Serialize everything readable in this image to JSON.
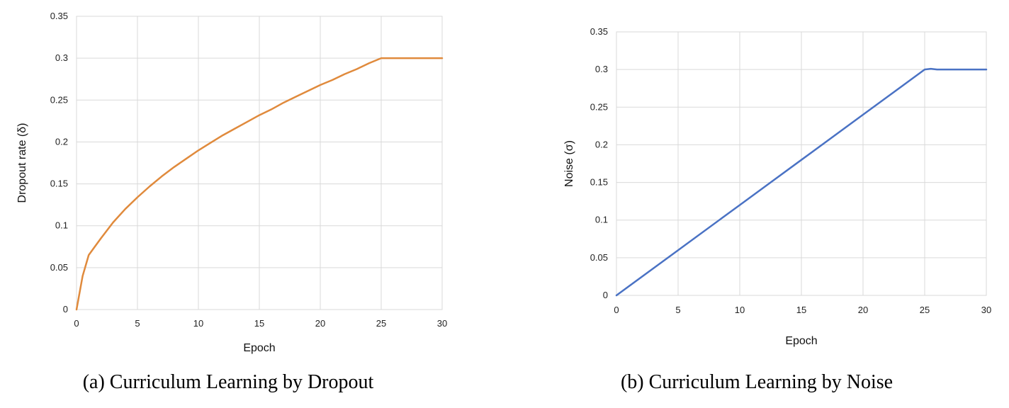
{
  "chart_data": [
    {
      "type": "line",
      "caption": "(a) Curriculum Learning by Dropout",
      "xlabel": "Epoch",
      "ylabel": "Dropout rate (δ)",
      "xlim": [
        0,
        30
      ],
      "ylim": [
        0,
        0.35
      ],
      "xticks": [
        0,
        5,
        10,
        15,
        20,
        25,
        30
      ],
      "xtick_labels": [
        "0",
        "5",
        "10",
        "15",
        "20",
        "25",
        "30"
      ],
      "yticks": [
        0,
        0.05,
        0.1,
        0.15,
        0.2,
        0.25,
        0.3,
        0.35
      ],
      "ytick_labels": [
        "0",
        "0.05",
        "0.1",
        "0.15",
        "0.2",
        "0.25",
        "0.3",
        "0.35"
      ],
      "grid": true,
      "color": "#e08a3c",
      "series": [
        {
          "x": [
            0,
            0.5,
            1,
            1.5,
            2,
            3,
            4,
            5,
            6,
            7,
            8,
            9,
            10,
            11,
            12,
            13,
            14,
            15,
            16,
            17,
            18,
            19,
            20,
            21,
            22,
            23,
            24,
            25,
            25.5,
            26,
            27,
            28,
            29,
            30
          ],
          "y": [
            0,
            0.04,
            0.065,
            0.075,
            0.085,
            0.104,
            0.12,
            0.134,
            0.147,
            0.159,
            0.17,
            0.18,
            0.19,
            0.199,
            0.208,
            0.216,
            0.224,
            0.232,
            0.239,
            0.247,
            0.254,
            0.261,
            0.268,
            0.274,
            0.281,
            0.287,
            0.294,
            0.3,
            0.3,
            0.3,
            0.3,
            0.3,
            0.3,
            0.3
          ]
        }
      ]
    },
    {
      "type": "line",
      "caption": "(b) Curriculum Learning by Noise",
      "xlabel": "Epoch",
      "ylabel": "Noise (σ)",
      "xlim": [
        0,
        30
      ],
      "ylim": [
        0,
        0.35
      ],
      "xticks": [
        0,
        5,
        10,
        15,
        20,
        25,
        30
      ],
      "xtick_labels": [
        "0",
        "5",
        "10",
        "15",
        "20",
        "25",
        "30"
      ],
      "yticks": [
        0,
        0.05,
        0.1,
        0.15,
        0.2,
        0.25,
        0.3,
        0.35
      ],
      "ytick_labels": [
        "0",
        "0.05",
        "0.1",
        "0.15",
        "0.2",
        "0.25",
        "0.3",
        "0.35"
      ],
      "grid": true,
      "color": "#4a72c4",
      "series": [
        {
          "x": [
            0,
            5,
            10,
            15,
            20,
            24,
            25,
            25.5,
            26,
            27,
            28,
            29,
            30
          ],
          "y": [
            0,
            0.06,
            0.12,
            0.18,
            0.24,
            0.288,
            0.3,
            0.301,
            0.3,
            0.3,
            0.3,
            0.3,
            0.3
          ]
        }
      ]
    }
  ]
}
